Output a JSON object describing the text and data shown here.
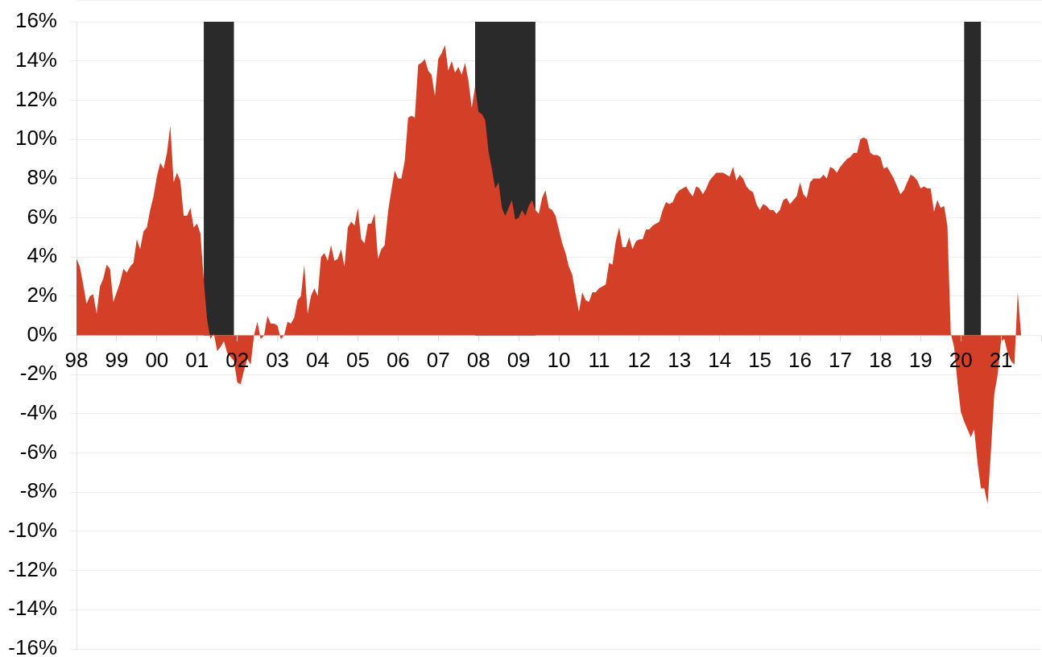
{
  "chart_data": {
    "type": "area",
    "x": [
      "1998-01",
      "1998-02",
      "1998-03",
      "1998-04",
      "1998-05",
      "1998-06",
      "1998-07",
      "1998-08",
      "1998-09",
      "1998-10",
      "1998-11",
      "1998-12",
      "1999-01",
      "1999-02",
      "1999-03",
      "1999-04",
      "1999-05",
      "1999-06",
      "1999-07",
      "1999-08",
      "1999-09",
      "1999-10",
      "1999-11",
      "1999-12",
      "2000-01",
      "2000-02",
      "2000-03",
      "2000-04",
      "2000-05",
      "2000-06",
      "2000-07",
      "2000-08",
      "2000-09",
      "2000-10",
      "2000-11",
      "2000-12",
      "2001-01",
      "2001-02",
      "2001-03",
      "2001-04",
      "2001-05",
      "2001-06",
      "2001-07",
      "2001-08",
      "2001-09",
      "2001-10",
      "2001-11",
      "2001-12",
      "2002-01",
      "2002-02",
      "2002-03",
      "2002-04",
      "2002-05",
      "2002-06",
      "2002-07",
      "2002-08",
      "2002-09",
      "2002-10",
      "2002-11",
      "2002-12",
      "2003-01",
      "2003-02",
      "2003-03",
      "2003-04",
      "2003-05",
      "2003-06",
      "2003-07",
      "2003-08",
      "2003-09",
      "2003-10",
      "2003-11",
      "2003-12",
      "2004-01",
      "2004-02",
      "2004-03",
      "2004-04",
      "2004-05",
      "2004-06",
      "2004-07",
      "2004-08",
      "2004-09",
      "2004-10",
      "2004-11",
      "2004-12",
      "2005-01",
      "2005-02",
      "2005-03",
      "2005-04",
      "2005-05",
      "2005-06",
      "2005-07",
      "2005-08",
      "2005-09",
      "2005-10",
      "2005-11",
      "2005-12",
      "2006-01",
      "2006-02",
      "2006-03",
      "2006-04",
      "2006-05",
      "2006-06",
      "2006-07",
      "2006-08",
      "2006-09",
      "2006-10",
      "2006-11",
      "2006-12",
      "2007-01",
      "2007-02",
      "2007-03",
      "2007-04",
      "2007-05",
      "2007-06",
      "2007-07",
      "2007-08",
      "2007-09",
      "2007-10",
      "2007-11",
      "2007-12",
      "2008-01",
      "2008-02",
      "2008-03",
      "2008-04",
      "2008-05",
      "2008-06",
      "2008-07",
      "2008-08",
      "2008-09",
      "2008-10",
      "2008-11",
      "2008-12",
      "2009-01",
      "2009-02",
      "2009-03",
      "2009-04",
      "2009-05",
      "2009-06",
      "2009-07",
      "2009-08",
      "2009-09",
      "2009-10",
      "2009-11",
      "2009-12",
      "2010-01",
      "2010-02",
      "2010-03",
      "2010-04",
      "2010-05",
      "2010-06",
      "2010-07",
      "2010-08",
      "2010-09",
      "2010-10",
      "2010-11",
      "2010-12",
      "2011-01",
      "2011-02",
      "2011-03",
      "2011-04",
      "2011-05",
      "2011-06",
      "2011-07",
      "2011-08",
      "2011-09",
      "2011-10",
      "2011-11",
      "2011-12",
      "2012-01",
      "2012-02",
      "2012-03",
      "2012-04",
      "2012-05",
      "2012-06",
      "2012-07",
      "2012-08",
      "2012-09",
      "2012-10",
      "2012-11",
      "2012-12",
      "2013-01",
      "2013-02",
      "2013-03",
      "2013-04",
      "2013-05",
      "2013-06",
      "2013-07",
      "2013-08",
      "2013-09",
      "2013-10",
      "2013-11",
      "2013-12",
      "2014-01",
      "2014-02",
      "2014-03",
      "2014-04",
      "2014-05",
      "2014-06",
      "2014-07",
      "2014-08",
      "2014-09",
      "2014-10",
      "2014-11",
      "2014-12",
      "2015-01",
      "2015-02",
      "2015-03",
      "2015-04",
      "2015-05",
      "2015-06",
      "2015-07",
      "2015-08",
      "2015-09",
      "2015-10",
      "2015-11",
      "2015-12",
      "2016-01",
      "2016-02",
      "2016-03",
      "2016-04",
      "2016-05",
      "2016-06",
      "2016-07",
      "2016-08",
      "2016-09",
      "2016-10",
      "2016-11",
      "2016-12",
      "2017-01",
      "2017-02",
      "2017-03",
      "2017-04",
      "2017-05",
      "2017-06",
      "2017-07",
      "2017-08",
      "2017-09",
      "2017-10",
      "2017-11",
      "2017-12",
      "2018-01",
      "2018-02",
      "2018-03",
      "2018-04",
      "2018-05",
      "2018-06",
      "2018-07",
      "2018-08",
      "2018-09",
      "2018-10",
      "2018-11",
      "2018-12",
      "2019-01",
      "2019-02",
      "2019-03",
      "2019-04",
      "2019-05",
      "2019-06",
      "2019-07",
      "2019-08",
      "2019-09",
      "2019-10",
      "2019-11",
      "2019-12",
      "2020-01",
      "2020-02",
      "2020-03",
      "2020-04",
      "2020-05",
      "2020-06",
      "2020-07",
      "2020-08",
      "2020-09",
      "2020-10",
      "2020-11",
      "2020-12",
      "2021-01",
      "2021-02",
      "2021-03",
      "2021-04",
      "2021-05",
      "2021-06",
      "2021-07"
    ],
    "values": [
      3.9,
      3.5,
      2.6,
      1.6,
      2.0,
      2.1,
      1.1,
      2.5,
      2.9,
      3.6,
      3.4,
      1.7,
      2.2,
      2.7,
      3.4,
      3.2,
      3.5,
      3.7,
      4.9,
      4.4,
      5.3,
      5.5,
      6.4,
      7.1,
      8.1,
      8.8,
      8.5,
      9.3,
      10.7,
      7.8,
      8.3,
      7.9,
      6.1,
      6.1,
      6.5,
      5.5,
      5.7,
      5.2,
      2.8,
      0.8,
      -0.2,
      0.1,
      -0.8,
      -0.6,
      -0.3,
      -0.9,
      -1.1,
      -1.3,
      -2.4,
      -2.5,
      -1.8,
      -1.2,
      -1.5,
      0.0,
      0.7,
      -0.2,
      0.0,
      1.0,
      0.6,
      0.6,
      0.5,
      -0.2,
      0.0,
      0.7,
      0.6,
      0.9,
      1.8,
      2.0,
      3.6,
      1.1,
      2.0,
      2.4,
      2.0,
      4.0,
      4.2,
      3.8,
      4.6,
      3.8,
      3.9,
      4.4,
      3.5,
      5.5,
      5.8,
      5.6,
      6.5,
      4.9,
      4.7,
      5.7,
      5.7,
      6.2,
      3.9,
      4.4,
      4.6,
      6.3,
      7.4,
      8.4,
      8.0,
      8.0,
      8.9,
      11.1,
      11.2,
      11.1,
      13.8,
      13.9,
      14.1,
      13.5,
      13.3,
      12.2,
      14.1,
      14.4,
      14.8,
      13.5,
      14.0,
      13.4,
      13.7,
      13.3,
      13.9,
      13.0,
      11.6,
      12.7,
      11.4,
      11.3,
      11.0,
      9.4,
      8.5,
      7.5,
      7.8,
      6.5,
      6.1,
      6.5,
      6.9,
      5.9,
      6.0,
      6.4,
      6.1,
      6.6,
      6.9,
      6.4,
      6.2,
      7.0,
      7.4,
      6.5,
      6.4,
      6.1,
      5.4,
      4.7,
      4.2,
      3.5,
      3.1,
      2.1,
      1.2,
      2.2,
      1.8,
      1.7,
      2.2,
      2.2,
      2.4,
      2.5,
      2.6,
      3.7,
      3.6,
      4.8,
      5.5,
      4.5,
      4.5,
      5.0,
      4.4,
      4.8,
      4.9,
      4.9,
      5.4,
      5.4,
      5.6,
      5.7,
      5.8,
      6.4,
      6.8,
      6.7,
      6.8,
      7.2,
      7.4,
      7.5,
      7.6,
      7.3,
      7.1,
      7.6,
      7.5,
      7.2,
      7.5,
      7.9,
      8.1,
      8.3,
      8.3,
      8.3,
      8.2,
      8.1,
      8.6,
      7.9,
      8.2,
      8.0,
      7.6,
      7.4,
      7.3,
      6.7,
      6.4,
      6.7,
      6.6,
      6.4,
      6.4,
      6.2,
      6.4,
      6.9,
      7.0,
      6.7,
      6.9,
      7.1,
      7.8,
      7.2,
      7.0,
      7.8,
      8.0,
      8.0,
      8.0,
      8.2,
      8.0,
      8.6,
      8.5,
      8.3,
      8.6,
      8.8,
      9.0,
      9.1,
      9.3,
      9.3,
      10.0,
      10.1,
      10.0,
      9.3,
      9.2,
      9.2,
      9.1,
      8.5,
      8.6,
      8.3,
      8.0,
      7.6,
      7.2,
      7.4,
      7.8,
      8.2,
      8.1,
      7.9,
      7.5,
      7.6,
      7.5,
      7.5,
      6.3,
      6.9,
      6.5,
      6.6,
      5.6,
      0.1,
      -0.6,
      -2.4,
      -3.9,
      -4.4,
      -4.8,
      -5.2,
      -4.8,
      -6.5,
      -7.8,
      -7.8,
      -8.6,
      -5.9,
      -3.0,
      -2.0,
      -0.3,
      -0.2,
      -0.9,
      -1.3,
      -1.5,
      2.2,
      0.0
    ],
    "color": "#d33f27",
    "bands": [
      {
        "axis": "x",
        "from": "2001-03",
        "to": "2001-12",
        "color": "#2a2a2a"
      },
      {
        "axis": "x",
        "from": "2007-12",
        "to": "2009-06",
        "color": "#2a2a2a"
      },
      {
        "axis": "x",
        "from": "2020-02",
        "to": "2020-07",
        "color": "#2a2a2a"
      }
    ],
    "xlim": [
      "1998-01",
      "2022-01"
    ],
    "xticks": [
      {
        "value": "1998-01",
        "label": "98"
      },
      {
        "value": "1999-01",
        "label": "99"
      },
      {
        "value": "2000-01",
        "label": "00"
      },
      {
        "value": "2001-01",
        "label": "01"
      },
      {
        "value": "2002-01",
        "label": "02"
      },
      {
        "value": "2003-01",
        "label": "03"
      },
      {
        "value": "2004-01",
        "label": "04"
      },
      {
        "value": "2005-01",
        "label": "05"
      },
      {
        "value": "2006-01",
        "label": "06"
      },
      {
        "value": "2007-01",
        "label": "07"
      },
      {
        "value": "2008-01",
        "label": "08"
      },
      {
        "value": "2009-01",
        "label": "09"
      },
      {
        "value": "2010-01",
        "label": "10"
      },
      {
        "value": "2011-01",
        "label": "11"
      },
      {
        "value": "2012-01",
        "label": "12"
      },
      {
        "value": "2013-01",
        "label": "13"
      },
      {
        "value": "2014-01",
        "label": "14"
      },
      {
        "value": "2015-01",
        "label": "15"
      },
      {
        "value": "2016-01",
        "label": "16"
      },
      {
        "value": "2017-01",
        "label": "17"
      },
      {
        "value": "2018-01",
        "label": "18"
      },
      {
        "value": "2019-01",
        "label": "19"
      },
      {
        "value": "2020-01",
        "label": "20"
      },
      {
        "value": "2021-01",
        "label": "21"
      },
      {
        "value": "2022-01",
        "label": null
      }
    ],
    "ylim": [
      -16,
      16
    ],
    "yticks": [
      {
        "value": -16,
        "label": "-16%"
      },
      {
        "value": -14,
        "label": "-14%"
      },
      {
        "value": -12,
        "label": "-12%"
      },
      {
        "value": -10,
        "label": "-10%"
      },
      {
        "value": -8,
        "label": "-8%"
      },
      {
        "value": -6,
        "label": "-6%"
      },
      {
        "value": -4,
        "label": "-4%"
      },
      {
        "value": -2,
        "label": "-2%"
      },
      {
        "value": 0,
        "label": "0%"
      },
      {
        "value": 2,
        "label": "2%"
      },
      {
        "value": 4,
        "label": "4%"
      },
      {
        "value": 6,
        "label": "6%"
      },
      {
        "value": 8,
        "label": "8%"
      },
      {
        "value": 10,
        "label": "10%"
      },
      {
        "value": 12,
        "label": "12%"
      },
      {
        "value": 14,
        "label": "14%"
      },
      {
        "value": 16,
        "label": "16%"
      }
    ],
    "grid": "y"
  }
}
